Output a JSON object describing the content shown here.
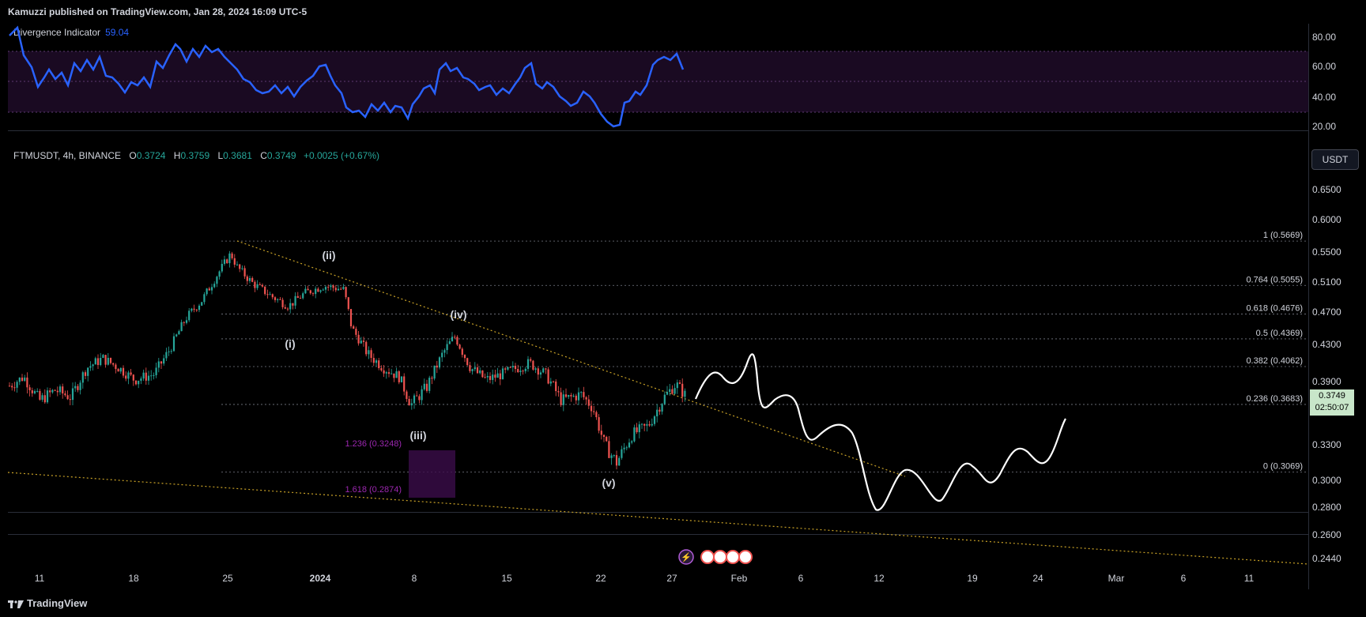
{
  "header": {
    "published": "Kamuzzi published on TradingView.com, Jan 28, 2024 16:09 UTC-5"
  },
  "indicator": {
    "name": "Divergence Indicator",
    "value": "59.04",
    "axis_labels": [
      "80.00",
      "60.00",
      "40.00",
      "20.00"
    ],
    "line_color": "#2962ff"
  },
  "symbol": {
    "name": "FTMUSDT, 4h, BINANCE",
    "open_label": "O",
    "open": "0.3724",
    "high_label": "H",
    "high": "0.3759",
    "low_label": "L",
    "low": "0.3681",
    "close_label": "C",
    "close": "0.3749",
    "change": "+0.0025 (+0.67%)"
  },
  "price_axis": {
    "currency": "USDT",
    "labels": [
      "0.6500",
      "0.6000",
      "0.5500",
      "0.5100",
      "0.4700",
      "0.4300",
      "0.3900",
      "0.3300",
      "0.3000",
      "0.2800",
      "0.2600",
      "0.2440"
    ],
    "current_price": "0.3749",
    "countdown": "02:50:07"
  },
  "fib_levels": [
    {
      "label": "1 (0.5669)",
      "price": 0.5669
    },
    {
      "label": "0.764 (0.5055)",
      "price": 0.5055
    },
    {
      "label": "0.618 (0.4676)",
      "price": 0.4676
    },
    {
      "label": "0.5 (0.4369)",
      "price": 0.4369
    },
    {
      "label": "0.382 (0.4062)",
      "price": 0.4062
    },
    {
      "label": "0.236 (0.3683)",
      "price": 0.3683
    },
    {
      "label": "0 (0.3069)",
      "price": 0.3069
    }
  ],
  "extension_levels": [
    {
      "label": "1.236 (0.3248)",
      "price": 0.3248
    },
    {
      "label": "1.618 (0.2874)",
      "price": 0.2874
    }
  ],
  "wave_labels": [
    "(i)",
    "(ii)",
    "(iii)",
    "(iv)",
    "(v)"
  ],
  "time_axis": [
    "11",
    "18",
    "25",
    "2024",
    "8",
    "15",
    "22",
    "27",
    "Feb",
    "6",
    "12",
    "19",
    "24",
    "Mar",
    "6",
    "11"
  ],
  "footer": {
    "brand": "TradingView"
  },
  "colors": {
    "bull": "#26a69a",
    "bear": "#ef5350",
    "fib_line": "#787b86",
    "trend_line": "#c9a227",
    "zone": "#3b0d4a",
    "rsi_band": "#1a0a22"
  }
}
